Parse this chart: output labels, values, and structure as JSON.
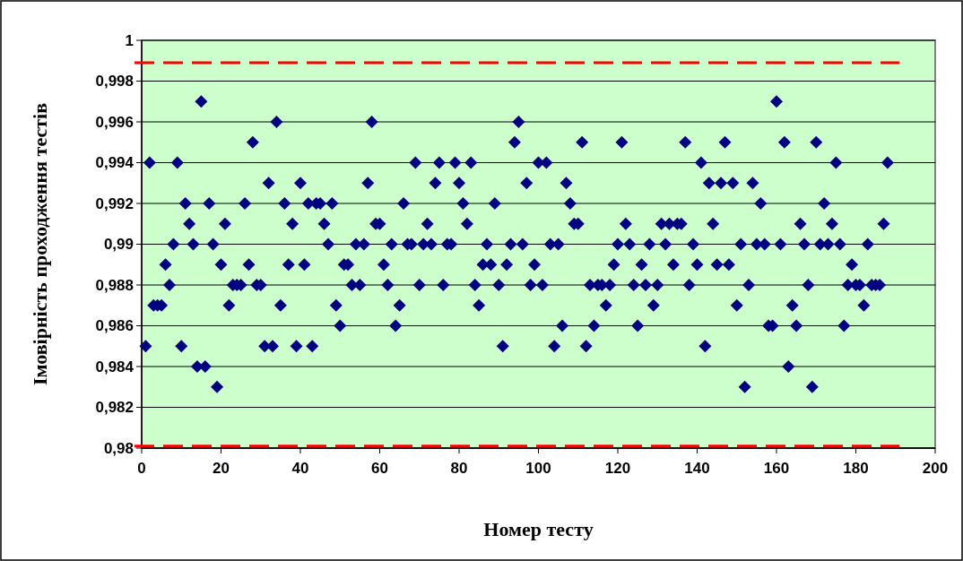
{
  "chart_data": {
    "type": "scatter",
    "xlabel": "Номер тесту",
    "ylabel": "Імовірність проходження тестів",
    "x": [
      1,
      2,
      3,
      4,
      5,
      6,
      7,
      8,
      9,
      10,
      11,
      12,
      13,
      14,
      15,
      16,
      17,
      18,
      19,
      20,
      21,
      22,
      23,
      24,
      25,
      26,
      27,
      28,
      29,
      30,
      31,
      32,
      33,
      34,
      35,
      36,
      37,
      38,
      39,
      40,
      41,
      42,
      43,
      44,
      45,
      46,
      47,
      48,
      49,
      50,
      51,
      52,
      53,
      54,
      55,
      56,
      57,
      58,
      59,
      60,
      61,
      62,
      63,
      64,
      65,
      66,
      67,
      68,
      69,
      70,
      71,
      72,
      73,
      74,
      75,
      76,
      77,
      78,
      79,
      80,
      81,
      82,
      83,
      84,
      85,
      86,
      87,
      88,
      89,
      90,
      91,
      92,
      93,
      94,
      95,
      96,
      97,
      98,
      99,
      100,
      101,
      102,
      103,
      104,
      105,
      106,
      107,
      108,
      109,
      110,
      111,
      112,
      113,
      114,
      115,
      116,
      117,
      118,
      119,
      120,
      121,
      122,
      123,
      124,
      125,
      126,
      127,
      128,
      129,
      130,
      131,
      132,
      133,
      134,
      135,
      136,
      137,
      138,
      139,
      140,
      141,
      142,
      143,
      144,
      145,
      146,
      147,
      148,
      149,
      150,
      151,
      152,
      153,
      154,
      155,
      156,
      157,
      158,
      159,
      160,
      161,
      162,
      163,
      164,
      165,
      166,
      167,
      168,
      169,
      170,
      171,
      172,
      173,
      174,
      175,
      176,
      177,
      178,
      179,
      180,
      181,
      182,
      183,
      184,
      185,
      186,
      187,
      188
    ],
    "series": [
      {
        "color": "#000080",
        "values": [
          0.985,
          0.994,
          0.987,
          0.987,
          0.987,
          0.989,
          0.988,
          0.99,
          0.994,
          0.985,
          0.992,
          0.991,
          0.99,
          0.984,
          0.997,
          0.984,
          0.992,
          0.99,
          0.983,
          0.989,
          0.991,
          0.987,
          0.988,
          0.988,
          0.988,
          0.992,
          0.989,
          0.995,
          0.988,
          0.988,
          0.985,
          0.993,
          0.985,
          0.996,
          0.987,
          0.992,
          0.989,
          0.991,
          0.985,
          0.993,
          0.989,
          0.992,
          0.985,
          0.992,
          0.992,
          0.991,
          0.99,
          0.992,
          0.987,
          0.986,
          0.989,
          0.989,
          0.988,
          0.99,
          0.988,
          0.99,
          0.993,
          0.996,
          0.991,
          0.991,
          0.989,
          0.988,
          0.99,
          0.986,
          0.987,
          0.992,
          0.99,
          0.99,
          0.994,
          0.988,
          0.99,
          0.991,
          0.99,
          0.993,
          0.994,
          0.988,
          0.99,
          0.99,
          0.994,
          0.993,
          0.992,
          0.991,
          0.994,
          0.988,
          0.987,
          0.989,
          0.99,
          0.989,
          0.992,
          0.988,
          0.985,
          0.989,
          0.99,
          0.995,
          0.996,
          0.99,
          0.993,
          0.988,
          0.989,
          0.994,
          0.988,
          0.994,
          0.99,
          0.985,
          0.99,
          0.986,
          0.993,
          0.992,
          0.991,
          0.991,
          0.995,
          0.985,
          0.988,
          0.986,
          0.988,
          0.988,
          0.987,
          0.988,
          0.989,
          0.99,
          0.995,
          0.991,
          0.99,
          0.988,
          0.986,
          0.989,
          0.988,
          0.99,
          0.987,
          0.988,
          0.991,
          0.99,
          0.991,
          0.989,
          0.991,
          0.991,
          0.995,
          0.988,
          0.99,
          0.989,
          0.994,
          0.985,
          0.993,
          0.991,
          0.989,
          0.993,
          0.995,
          0.989,
          0.993,
          0.987,
          0.99,
          0.983,
          0.988,
          0.993,
          0.99,
          0.992,
          0.99,
          0.986,
          0.986,
          0.997,
          0.99,
          0.995,
          0.984,
          0.987,
          0.986,
          0.991,
          0.99,
          0.988,
          0.983,
          0.995,
          0.99,
          0.992,
          0.99,
          0.991,
          0.994,
          0.99,
          0.986,
          0.988,
          0.989,
          0.988,
          0.988,
          0.987,
          0.99,
          0.988,
          0.988,
          0.988,
          0.991,
          0.994
        ]
      }
    ],
    "xlim": [
      0,
      200
    ],
    "xticks": [
      0,
      20,
      40,
      60,
      80,
      100,
      120,
      140,
      160,
      180,
      200
    ],
    "ylim": [
      0.98,
      1
    ],
    "yticks": [
      {
        "value": 0.98,
        "label": "0,98"
      },
      {
        "value": 0.982,
        "label": "0,982"
      },
      {
        "value": 0.984,
        "label": "0,984"
      },
      {
        "value": 0.986,
        "label": "0,986"
      },
      {
        "value": 0.988,
        "label": "0,988"
      },
      {
        "value": 0.99,
        "label": "0,99"
      },
      {
        "value": 0.992,
        "label": "0,992"
      },
      {
        "value": 0.994,
        "label": "0,994"
      },
      {
        "value": 0.996,
        "label": "0,996"
      },
      {
        "value": 0.998,
        "label": "0,998"
      },
      1
    ],
    "grid": "y",
    "marker": "diamond",
    "ref_lines": [
      {
        "axis": "y",
        "value": 0.9989,
        "color": "#ff0000",
        "line_style": "dashed"
      },
      {
        "axis": "y",
        "value": 0.9801,
        "color": "#ff0000",
        "line_style": "dashed"
      }
    ]
  }
}
